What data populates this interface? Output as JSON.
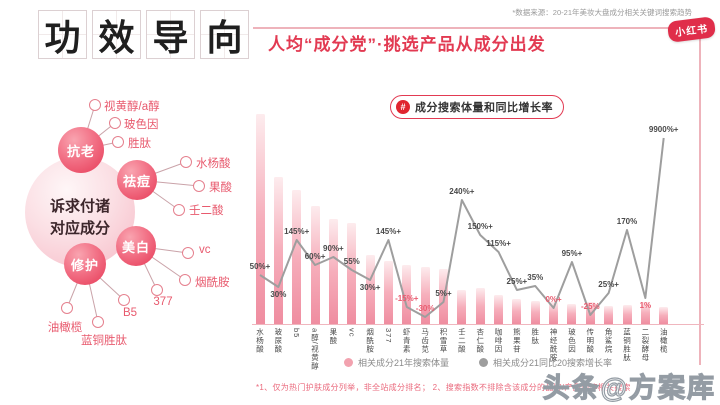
{
  "header": {
    "title_chars": [
      "功",
      "效",
      "导",
      "向"
    ],
    "subtitle": "人均“成分党”·挑选产品从成分出发",
    "source_note": "*数据来源：20-21年美妆大盘成分相关关键词搜索趋势",
    "platform_badge": "小红书"
  },
  "diagram": {
    "center_line1": "诉求付诸",
    "center_line2": "对应成分",
    "groups": [
      {
        "name": "抗老",
        "items": [
          "视黄醇/a醇",
          "玻色因",
          "胜肽"
        ]
      },
      {
        "name": "祛痘",
        "items": [
          "水杨酸",
          "果酸",
          "壬二酸"
        ]
      },
      {
        "name": "美白",
        "items": [
          "vc",
          "烟酰胺",
          "377"
        ]
      },
      {
        "name": "修护",
        "items": [
          "B5",
          "蓝铜胜肽",
          "油橄榄"
        ]
      }
    ]
  },
  "chart": {
    "badge": "#",
    "title": "成分搜索体量和同比增长率",
    "footnote": "*1、仅为热门护肤成分列举，非全站成分排名；  2、搜索指数不排除含该成分的品牌/产品词等相关搜索"
  },
  "chart_data": {
    "type": "bar+line",
    "title": "成分搜索体量和同比增长率",
    "grid": false,
    "legend_position": "bottom",
    "categories": [
      "水杨酸",
      "玻尿酸",
      "b5",
      "a醇/视黄醇",
      "果酸",
      "vc",
      "烟酰胺",
      "377",
      "虾青素",
      "马齿苋",
      "积雪草",
      "壬二酸",
      "杏仁酸",
      "咖啡因",
      "熊果苷",
      "胜肽",
      "神经酰胺",
      "玻色因",
      "传明酸",
      "角鲨烷",
      "蓝铜胜肽",
      "二裂酵母",
      "油橄榄"
    ],
    "series": [
      {
        "name": "相关成分21年搜索体量",
        "type": "bar",
        "color": "#f2a2af",
        "values_relative": [
          100,
          70,
          64,
          56,
          50,
          48,
          33,
          30,
          28,
          27,
          26,
          16,
          17,
          14,
          12,
          11,
          10.5,
          9.5,
          10.5,
          8.5,
          9,
          10.5,
          8
        ]
      },
      {
        "name": "相关成分21同比20搜索增长率",
        "type": "line",
        "color": "#9e9e9e",
        "labels": [
          "50%+",
          "30%",
          "145%+",
          "60%+",
          "90%+",
          "55%",
          "30%+",
          "145%+",
          "-15%+",
          "-30%",
          "5%+",
          "240%+",
          "150%+",
          "115%+",
          "25%+",
          "35%",
          "0%+",
          "95%+",
          "-25%",
          "25%+",
          "170%",
          "1%",
          "9900%+"
        ],
        "values_percent": [
          50,
          30,
          145,
          60,
          90,
          55,
          30,
          145,
          -15,
          -30,
          5,
          240,
          150,
          115,
          25,
          35,
          0,
          95,
          -25,
          25,
          170,
          1,
          9900
        ],
        "plot_levels": [
          50,
          38,
          85,
          60,
          68,
          55,
          45,
          85,
          18,
          8,
          23,
          125,
          90,
          73,
          35,
          39,
          17,
          63,
          10,
          32,
          95,
          27,
          187
        ],
        "label_below": [
          false,
          true,
          false,
          false,
          false,
          false,
          true,
          false,
          false,
          false,
          false,
          false,
          false,
          false,
          false,
          false,
          false,
          false,
          false,
          false,
          false,
          true,
          false
        ],
        "label_red": [
          false,
          false,
          false,
          false,
          false,
          false,
          false,
          false,
          true,
          true,
          false,
          false,
          false,
          false,
          false,
          false,
          true,
          false,
          true,
          false,
          false,
          true,
          false
        ]
      }
    ]
  },
  "watermark": "头条@方案库",
  "colors": {
    "accent_red": "#e23a52",
    "bar_pink": "#f2a2af",
    "line_gray": "#9e9e9e",
    "negative_label": "#e95c70"
  }
}
